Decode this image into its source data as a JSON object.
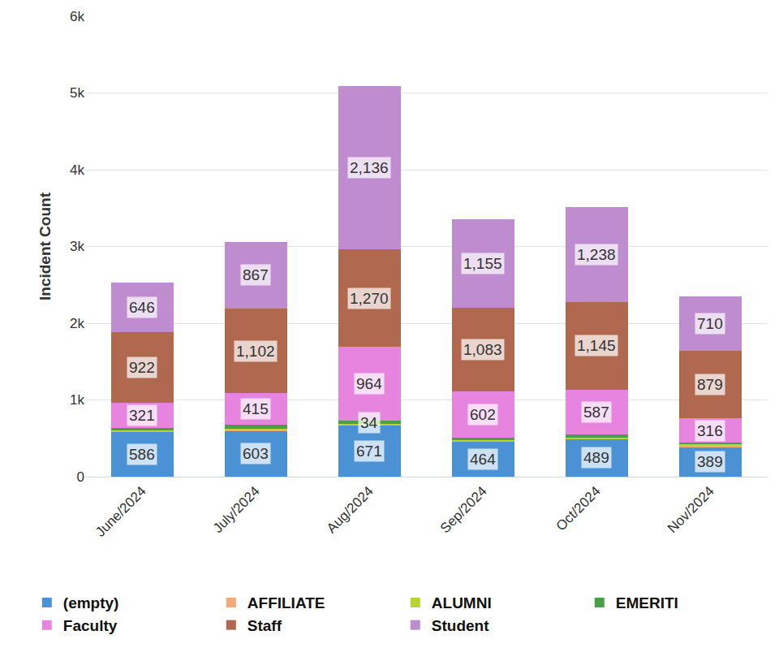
{
  "chart_data": {
    "type": "bar",
    "stacked": true,
    "orientation": "vertical",
    "y_label": "Incident Count",
    "categories": [
      "June/2024",
      "July/2024",
      "Aug/2024",
      "Sep/2024",
      "Oct/2024",
      "Nov/2024"
    ],
    "ylim": [
      0,
      6000
    ],
    "yticks": [
      0,
      {
        "value": 1000,
        "label": "1k"
      },
      {
        "value": 2000,
        "label": "2k"
      },
      {
        "value": 3000,
        "label": "3k"
      },
      {
        "value": 4000,
        "label": "4k"
      },
      {
        "value": 5000,
        "label": "5k"
      },
      {
        "value": 6000,
        "label": "6k"
      }
    ],
    "grid": true,
    "legend": "bottom",
    "data_labels": true,
    "series": [
      {
        "name": "(empty)",
        "color": "#4a92d4",
        "values": [
          586,
          603,
          671,
          464,
          489,
          389
        ],
        "value_labels": [
          "586",
          "603",
          "671",
          "464",
          "489",
          "389"
        ]
      },
      {
        "name": "AFFILIATE",
        "color": "#f2a97c",
        "values": [
          4,
          6,
          5,
          5,
          6,
          20
        ],
        "data_labels": false
      },
      {
        "name": "ALUMNI",
        "color": "#b8d332",
        "values": [
          12,
          20,
          15,
          12,
          15,
          10
        ],
        "data_labels": false
      },
      {
        "name": "EMERITI",
        "color": "#4aa04a",
        "values": [
          36,
          45,
          34,
          30,
          38,
          25
        ],
        "value_labels": [
          null,
          null,
          "34",
          null,
          null,
          null
        ]
      },
      {
        "name": "Faculty",
        "color": "#e684e0",
        "values": [
          321,
          415,
          964,
          602,
          587,
          316
        ],
        "value_labels": [
          "321",
          "415",
          "964",
          "602",
          "587",
          "316"
        ]
      },
      {
        "name": "Staff",
        "color": "#b0684f",
        "values": [
          922,
          1102,
          1270,
          1083,
          1145,
          879
        ],
        "value_labels": [
          "922",
          "1,102",
          "1,270",
          "1,083",
          "1,145",
          "879"
        ]
      },
      {
        "name": "Student",
        "color": "#bf8ccf",
        "values": [
          646,
          867,
          2136,
          1155,
          1238,
          710
        ],
        "value_labels": [
          "646",
          "867",
          "2,136",
          "1,155",
          "1,238",
          "710"
        ]
      }
    ]
  }
}
